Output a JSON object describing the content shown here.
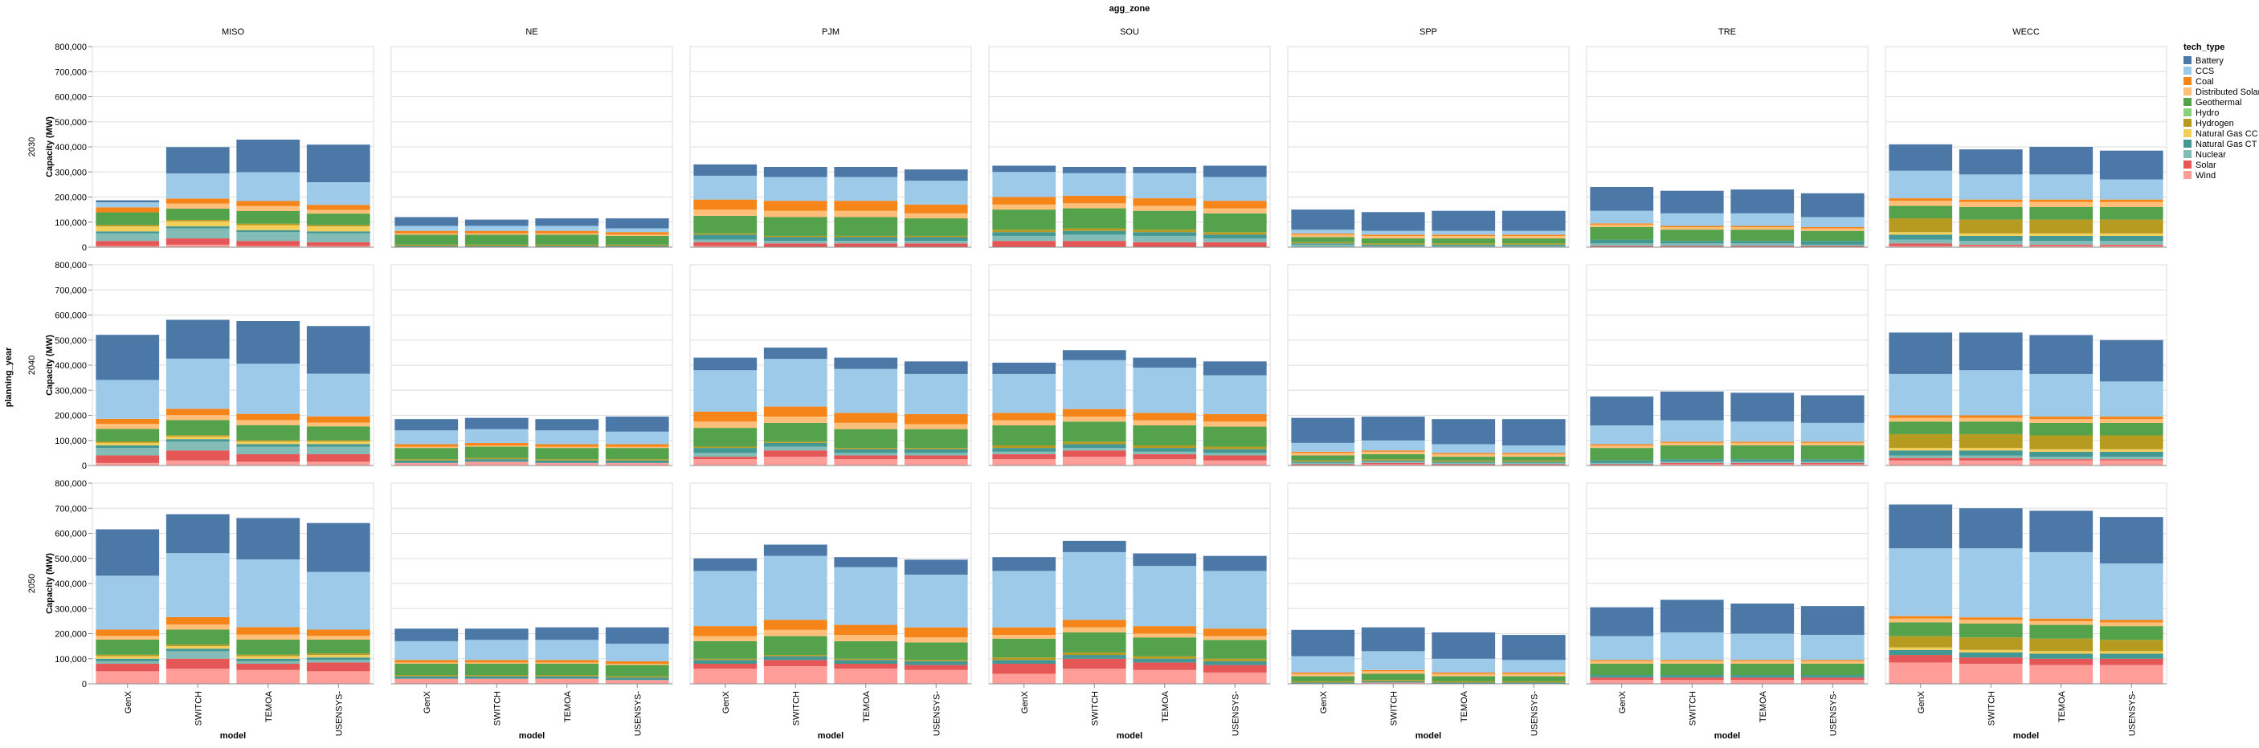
{
  "chart_data": {
    "type": "bar",
    "stacked": true,
    "column_facet_title": "agg_zone",
    "row_facet_title": "planning_year",
    "xlabel": "model",
    "ylabel": "Capacity (MW)",
    "ylim": [
      0,
      800000
    ],
    "y_ticks": [
      0,
      100000,
      200000,
      300000,
      400000,
      500000,
      600000,
      700000,
      800000
    ],
    "y_tick_labels": [
      "0",
      "100,000",
      "200,000",
      "300,000",
      "400,000",
      "500,000",
      "600,000",
      "700,000",
      "800,000"
    ],
    "grid": true,
    "legend_position": "right",
    "legend_title": "tech_type",
    "zones": [
      "MISO",
      "NE",
      "PJM",
      "SOU",
      "SPP",
      "TRE",
      "WECC"
    ],
    "years": [
      "2030",
      "2040",
      "2050"
    ],
    "models": [
      "GenX",
      "SWITCH",
      "TEMOA",
      "USENSYS"
    ],
    "model_tick_labels": [
      "GenX",
      "SWITCH",
      "TEMOA",
      "USENSYS-"
    ],
    "tech_types": [
      "Battery",
      "CCS",
      "Coal",
      "Distributed Solar",
      "Geothermal",
      "Hydro",
      "Hydrogen",
      "Natural Gas CC",
      "Natural Gas CT",
      "Nuclear",
      "Solar",
      "Wind"
    ],
    "colors": {
      "Battery": "#4c78a8",
      "CCS": "#9ecae9",
      "Coal": "#f58518",
      "Distributed Solar": "#ffbf79",
      "Geothermal": "#54a24b",
      "Hydro": "#88d27a",
      "Hydrogen": "#b79a20",
      "Natural Gas CC": "#f2cf5b",
      "Natural Gas CT": "#439894",
      "Nuclear": "#83bcb6",
      "Solar": "#e45756",
      "Wind": "#ff9d98"
    },
    "stack_order_bottom_to_top": [
      "Wind",
      "Solar",
      "Nuclear",
      "Natural Gas CT",
      "Natural Gas CC",
      "Hydrogen",
      "Hydro",
      "Geothermal",
      "Distributed Solar",
      "Coal",
      "CCS",
      "Battery"
    ],
    "bars": {
      "MISO|2030|GenX": [
        8000,
        20000,
        20000,
        0,
        50000,
        0,
        6000,
        20000,
        8000,
        30000,
        20000,
        5000
      ],
      "MISO|2030|SWITCH": [
        105000,
        100000,
        20000,
        20000,
        45000,
        0,
        6000,
        20000,
        8000,
        40000,
        25000,
        10000
      ],
      "MISO|2030|TEMOA": [
        130000,
        115000,
        20000,
        20000,
        50000,
        0,
        6000,
        20000,
        8000,
        35000,
        20000,
        5000
      ],
      "MISO|2030|USENSYS": [
        150000,
        90000,
        20000,
        15000,
        45000,
        0,
        6000,
        20000,
        8000,
        35000,
        15000,
        5000
      ],
      "NE|2030|GenX": [
        35000,
        20000,
        10000,
        5000,
        40000,
        0,
        5000,
        0,
        5000,
        0,
        0,
        0
      ],
      "NE|2030|SWITCH": [
        25000,
        20000,
        10000,
        5000,
        40000,
        0,
        5000,
        0,
        5000,
        0,
        0,
        0
      ],
      "NE|2030|TEMOA": [
        30000,
        20000,
        10000,
        5000,
        40000,
        0,
        5000,
        0,
        5000,
        0,
        0,
        0
      ],
      "NE|2030|USENSYS": [
        40000,
        15000,
        10000,
        5000,
        35000,
        0,
        5000,
        0,
        5000,
        0,
        0,
        0
      ],
      "PJM|2030|GenX": [
        45000,
        95000,
        40000,
        25000,
        70000,
        0,
        5000,
        0,
        20000,
        10000,
        15000,
        5000
      ],
      "PJM|2030|SWITCH": [
        40000,
        95000,
        40000,
        25000,
        75000,
        0,
        5000,
        0,
        15000,
        10000,
        15000,
        0
      ],
      "PJM|2030|TEMOA": [
        40000,
        95000,
        40000,
        25000,
        75000,
        0,
        5000,
        0,
        15000,
        10000,
        15000,
        0
      ],
      "PJM|2030|USENSYS": [
        45000,
        95000,
        35000,
        20000,
        70000,
        0,
        5000,
        0,
        15000,
        10000,
        15000,
        0
      ],
      "SOU|2030|GenX": [
        25000,
        100000,
        30000,
        20000,
        80000,
        0,
        10000,
        0,
        15000,
        20000,
        25000,
        0
      ],
      "SOU|2030|SWITCH": [
        25000,
        90000,
        30000,
        20000,
        80000,
        0,
        10000,
        0,
        15000,
        25000,
        25000,
        0
      ],
      "SOU|2030|TEMOA": [
        25000,
        100000,
        30000,
        20000,
        75000,
        0,
        10000,
        0,
        15000,
        25000,
        20000,
        0
      ],
      "SOU|2030|USENSYS": [
        45000,
        95000,
        30000,
        20000,
        75000,
        0,
        10000,
        0,
        15000,
        15000,
        20000,
        0
      ],
      "SPP|2030|GenX": [
        80000,
        15000,
        5000,
        10000,
        20000,
        0,
        5000,
        0,
        5000,
        10000,
        0,
        0
      ],
      "SPP|2030|SWITCH": [
        75000,
        15000,
        5000,
        10000,
        20000,
        0,
        5000,
        0,
        5000,
        5000,
        0,
        0
      ],
      "SPP|2030|TEMOA": [
        80000,
        15000,
        5000,
        10000,
        20000,
        0,
        5000,
        0,
        5000,
        5000,
        0,
        0
      ],
      "SPP|2030|USENSYS": [
        80000,
        15000,
        5000,
        10000,
        20000,
        0,
        5000,
        0,
        5000,
        5000,
        0,
        0
      ],
      "TRE|2030|GenX": [
        95000,
        50000,
        5000,
        10000,
        50000,
        0,
        0,
        0,
        15000,
        10000,
        5000,
        0
      ],
      "TRE|2030|SWITCH": [
        90000,
        50000,
        5000,
        10000,
        45000,
        0,
        0,
        0,
        10000,
        10000,
        5000,
        0
      ],
      "TRE|2030|TEMOA": [
        95000,
        50000,
        5000,
        10000,
        45000,
        0,
        0,
        0,
        10000,
        10000,
        5000,
        0
      ],
      "TRE|2030|USENSYS": [
        95000,
        40000,
        5000,
        10000,
        40000,
        0,
        0,
        0,
        15000,
        5000,
        5000,
        0
      ],
      "WECC|2030|GenX": [
        105000,
        110000,
        10000,
        20000,
        50000,
        0,
        55000,
        10000,
        20000,
        15000,
        10000,
        5000
      ],
      "WECC|2030|SWITCH": [
        100000,
        100000,
        10000,
        20000,
        50000,
        0,
        55000,
        10000,
        20000,
        15000,
        5000,
        5000
      ],
      "WECC|2030|TEMOA": [
        110000,
        100000,
        10000,
        20000,
        50000,
        0,
        55000,
        10000,
        20000,
        15000,
        5000,
        5000
      ],
      "WECC|2030|USENSYS": [
        115000,
        80000,
        10000,
        20000,
        50000,
        0,
        55000,
        10000,
        20000,
        15000,
        5000,
        5000
      ],
      "MISO|2040|GenX": [
        180000,
        155000,
        20000,
        20000,
        50000,
        0,
        6000,
        10000,
        10000,
        30000,
        30000,
        10000
      ],
      "MISO|2040|SWITCH": [
        155000,
        200000,
        25000,
        20000,
        60000,
        0,
        6000,
        10000,
        10000,
        35000,
        40000,
        20000
      ],
      "MISO|2040|TEMOA": [
        170000,
        200000,
        25000,
        20000,
        60000,
        0,
        6000,
        10000,
        10000,
        30000,
        30000,
        15000
      ],
      "MISO|2040|USENSYS": [
        190000,
        170000,
        25000,
        15000,
        55000,
        0,
        6000,
        10000,
        10000,
        30000,
        30000,
        15000
      ],
      "NE|2040|GenX": [
        45000,
        55000,
        10000,
        5000,
        45000,
        0,
        5000,
        0,
        10000,
        0,
        0,
        10000
      ],
      "NE|2040|SWITCH": [
        45000,
        55000,
        10000,
        5000,
        45000,
        0,
        5000,
        0,
        10000,
        0,
        0,
        15000
      ],
      "NE|2040|TEMOA": [
        45000,
        55000,
        10000,
        5000,
        45000,
        0,
        5000,
        0,
        10000,
        0,
        0,
        10000
      ],
      "NE|2040|USENSYS": [
        60000,
        50000,
        10000,
        5000,
        45000,
        0,
        5000,
        0,
        10000,
        0,
        0,
        10000
      ],
      "PJM|2040|GenX": [
        50000,
        165000,
        40000,
        25000,
        75000,
        0,
        5000,
        0,
        20000,
        15000,
        10000,
        25000
      ],
      "PJM|2040|SWITCH": [
        45000,
        190000,
        40000,
        25000,
        75000,
        0,
        5000,
        0,
        15000,
        15000,
        25000,
        35000
      ],
      "PJM|2040|TEMOA": [
        45000,
        175000,
        40000,
        25000,
        75000,
        0,
        5000,
        0,
        15000,
        10000,
        15000,
        25000
      ],
      "PJM|2040|USENSYS": [
        50000,
        160000,
        40000,
        20000,
        75000,
        0,
        5000,
        0,
        15000,
        10000,
        15000,
        25000
      ],
      "SOU|2040|GenX": [
        45000,
        155000,
        30000,
        20000,
        80000,
        0,
        10000,
        0,
        15000,
        10000,
        20000,
        25000
      ],
      "SOU|2040|SWITCH": [
        40000,
        195000,
        30000,
        20000,
        80000,
        0,
        10000,
        0,
        15000,
        10000,
        25000,
        35000
      ],
      "SOU|2040|TEMOA": [
        40000,
        180000,
        30000,
        20000,
        80000,
        0,
        10000,
        0,
        15000,
        10000,
        20000,
        25000
      ],
      "SOU|2040|USENSYS": [
        55000,
        155000,
        30000,
        20000,
        80000,
        0,
        10000,
        0,
        15000,
        10000,
        20000,
        20000
      ],
      "SPP|2040|GenX": [
        100000,
        35000,
        5000,
        10000,
        20000,
        0,
        5000,
        0,
        5000,
        5000,
        5000,
        0
      ],
      "SPP|2040|SWITCH": [
        95000,
        40000,
        5000,
        10000,
        20000,
        0,
        5000,
        0,
        5000,
        5000,
        5000,
        5000
      ],
      "SPP|2040|TEMOA": [
        100000,
        35000,
        5000,
        10000,
        15000,
        0,
        5000,
        0,
        5000,
        5000,
        5000,
        0
      ],
      "SPP|2040|USENSYS": [
        105000,
        30000,
        5000,
        10000,
        15000,
        0,
        5000,
        0,
        5000,
        5000,
        5000,
        0
      ],
      "TRE|2040|GenX": [
        115000,
        75000,
        5000,
        10000,
        50000,
        0,
        0,
        0,
        10000,
        5000,
        5000,
        0
      ],
      "TRE|2040|SWITCH": [
        115000,
        85000,
        5000,
        10000,
        55000,
        0,
        0,
        0,
        10000,
        5000,
        5000,
        5000
      ],
      "TRE|2040|TEMOA": [
        115000,
        80000,
        5000,
        10000,
        55000,
        0,
        0,
        0,
        10000,
        5000,
        5000,
        5000
      ],
      "TRE|2040|USENSYS": [
        110000,
        75000,
        5000,
        10000,
        55000,
        0,
        0,
        0,
        10000,
        5000,
        5000,
        5000
      ],
      "WECC|2040|GenX": [
        165000,
        165000,
        10000,
        15000,
        50000,
        0,
        55000,
        10000,
        20000,
        10000,
        10000,
        20000
      ],
      "WECC|2040|SWITCH": [
        150000,
        180000,
        10000,
        15000,
        50000,
        0,
        55000,
        10000,
        20000,
        10000,
        10000,
        20000
      ],
      "WECC|2040|TEMOA": [
        155000,
        170000,
        10000,
        15000,
        50000,
        0,
        55000,
        10000,
        20000,
        10000,
        5000,
        20000
      ],
      "WECC|2040|USENSYS": [
        165000,
        140000,
        10000,
        15000,
        50000,
        0,
        55000,
        10000,
        20000,
        10000,
        5000,
        20000
      ],
      "MISO|2050|GenX": [
        185000,
        215000,
        25000,
        15000,
        60000,
        0,
        6000,
        10000,
        10000,
        10000,
        30000,
        50000
      ],
      "MISO|2050|SWITCH": [
        155000,
        255000,
        30000,
        20000,
        60000,
        0,
        6000,
        10000,
        10000,
        30000,
        40000,
        60000
      ],
      "MISO|2050|TEMOA": [
        165000,
        270000,
        30000,
        20000,
        60000,
        0,
        6000,
        10000,
        10000,
        10000,
        25000,
        55000
      ],
      "MISO|2050|USENSYS": [
        195000,
        230000,
        25000,
        15000,
        55000,
        0,
        6000,
        10000,
        10000,
        10000,
        35000,
        50000
      ],
      "NE|2050|GenX": [
        50000,
        75000,
        10000,
        5000,
        45000,
        0,
        5000,
        0,
        10000,
        0,
        0,
        20000
      ],
      "NE|2050|SWITCH": [
        45000,
        80000,
        10000,
        5000,
        45000,
        0,
        5000,
        0,
        10000,
        0,
        0,
        20000
      ],
      "NE|2050|TEMOA": [
        50000,
        80000,
        10000,
        5000,
        45000,
        0,
        5000,
        0,
        10000,
        0,
        0,
        20000
      ],
      "NE|2050|USENSYS": [
        65000,
        70000,
        10000,
        5000,
        45000,
        0,
        5000,
        0,
        10000,
        0,
        0,
        15000
      ],
      "PJM|2050|GenX": [
        50000,
        220000,
        40000,
        20000,
        70000,
        0,
        5000,
        0,
        15000,
        0,
        20000,
        60000
      ],
      "PJM|2050|SWITCH": [
        45000,
        255000,
        40000,
        25000,
        75000,
        0,
        5000,
        0,
        15000,
        0,
        25000,
        70000
      ],
      "PJM|2050|TEMOA": [
        40000,
        230000,
        40000,
        25000,
        70000,
        0,
        5000,
        0,
        15000,
        0,
        20000,
        60000
      ],
      "PJM|2050|USENSYS": [
        60000,
        210000,
        40000,
        20000,
        70000,
        0,
        5000,
        0,
        15000,
        0,
        20000,
        55000
      ],
      "SOU|2050|GenX": [
        55000,
        225000,
        30000,
        15000,
        75000,
        0,
        10000,
        0,
        15000,
        0,
        40000,
        40000
      ],
      "SOU|2050|SWITCH": [
        45000,
        270000,
        30000,
        20000,
        80000,
        0,
        10000,
        0,
        15000,
        0,
        40000,
        60000
      ],
      "SOU|2050|TEMOA": [
        50000,
        240000,
        30000,
        15000,
        75000,
        0,
        10000,
        0,
        15000,
        0,
        30000,
        55000
      ],
      "SOU|2050|USENSYS": [
        60000,
        230000,
        30000,
        15000,
        75000,
        0,
        10000,
        0,
        15000,
        0,
        30000,
        45000
      ],
      "SPP|2050|GenX": [
        105000,
        65000,
        5000,
        10000,
        20000,
        0,
        5000,
        0,
        5000,
        0,
        0,
        0
      ],
      "SPP|2050|SWITCH": [
        95000,
        75000,
        5000,
        10000,
        25000,
        0,
        5000,
        0,
        5000,
        0,
        0,
        5000
      ],
      "SPP|2050|TEMOA": [
        105000,
        55000,
        5000,
        10000,
        20000,
        0,
        5000,
        0,
        5000,
        0,
        0,
        0
      ],
      "SPP|2050|USENSYS": [
        100000,
        50000,
        5000,
        10000,
        20000,
        0,
        5000,
        0,
        5000,
        0,
        0,
        0
      ],
      "TRE|2050|GenX": [
        115000,
        95000,
        5000,
        10000,
        45000,
        0,
        0,
        0,
        10000,
        0,
        10000,
        15000
      ],
      "TRE|2050|SWITCH": [
        130000,
        110000,
        5000,
        10000,
        45000,
        0,
        0,
        0,
        10000,
        0,
        10000,
        15000
      ],
      "TRE|2050|TEMOA": [
        120000,
        105000,
        5000,
        10000,
        45000,
        0,
        0,
        0,
        10000,
        0,
        10000,
        15000
      ],
      "TRE|2050|USENSYS": [
        115000,
        100000,
        5000,
        10000,
        45000,
        0,
        0,
        0,
        10000,
        0,
        10000,
        15000
      ],
      "WECC|2050|GenX": [
        175000,
        270000,
        10000,
        15000,
        55000,
        0,
        45000,
        10000,
        20000,
        0,
        30000,
        85000
      ],
      "WECC|2050|SWITCH": [
        160000,
        275000,
        10000,
        15000,
        55000,
        0,
        50000,
        10000,
        20000,
        0,
        25000,
        80000
      ],
      "WECC|2050|TEMOA": [
        165000,
        265000,
        10000,
        15000,
        55000,
        0,
        50000,
        10000,
        20000,
        0,
        25000,
        75000
      ],
      "WECC|2050|USENSYS": [
        185000,
        225000,
        10000,
        15000,
        55000,
        0,
        45000,
        10000,
        20000,
        0,
        25000,
        75000
      ]
    }
  }
}
